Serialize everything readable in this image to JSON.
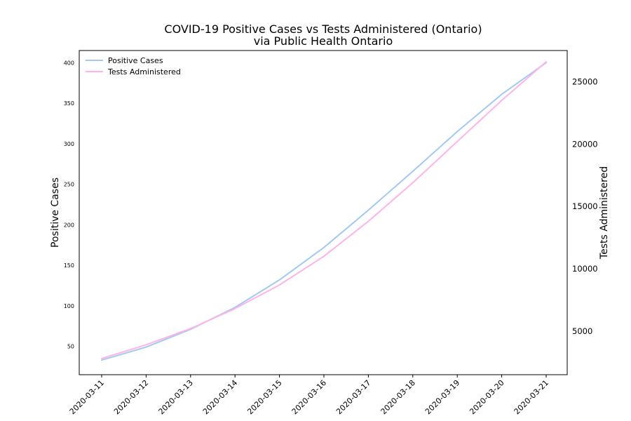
{
  "chart_data": {
    "type": "line",
    "title": "COVID-19 Positive Cases vs Tests Administered (Ontario)",
    "subtitle": "via Public Health Ontario",
    "x": [
      "2020-03-11",
      "2020-03-12",
      "2020-03-13",
      "2020-03-14",
      "2020-03-15",
      "2020-03-16",
      "2020-03-17",
      "2020-03-18",
      "2020-03-19",
      "2020-03-20",
      "2020-03-21"
    ],
    "xlabel": "",
    "y_left": {
      "label": "Positive Cases",
      "ylim": [
        15,
        415
      ],
      "ticks": [
        "50",
        "100",
        "150",
        "200",
        "250",
        "300",
        "350",
        "400"
      ]
    },
    "y_right": {
      "label": "Tests Administered",
      "ylim": [
        1500,
        27500
      ],
      "ticks": [
        "5000",
        "10000",
        "15000",
        "20000",
        "25000"
      ]
    },
    "series": [
      {
        "name": "Positive Cases",
        "axis": "left",
        "color": "#a1c9f4",
        "values": [
          33,
          49,
          71,
          98,
          132,
          172,
          218,
          266,
          315,
          361,
          400
        ]
      },
      {
        "name": "Tests Administered",
        "axis": "right",
        "color": "#ffb3e6",
        "values": [
          2800,
          3900,
          5200,
          6800,
          8700,
          11000,
          13800,
          16900,
          20200,
          23500,
          26600
        ]
      }
    ],
    "legend": "top-left",
    "grid": false
  }
}
